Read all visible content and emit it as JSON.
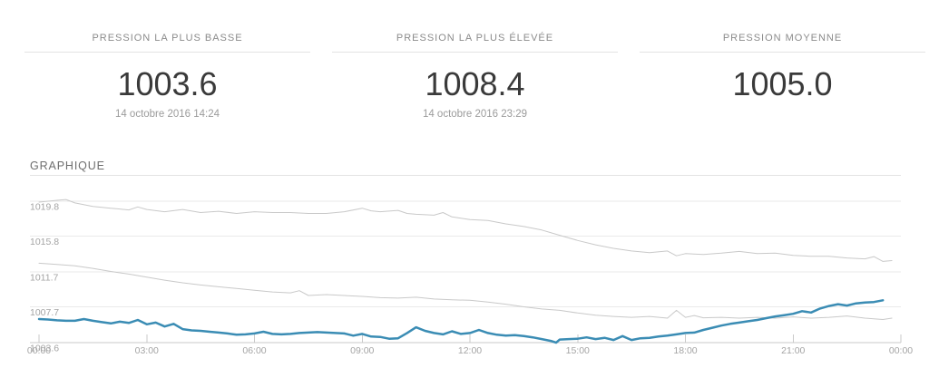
{
  "summary_cards": [
    {
      "label": "PRESSION LA PLUS BASSE",
      "value": "1003.6",
      "date": "14 octobre 2016 14:24"
    },
    {
      "label": "PRESSION LA PLUS ÉLEVÉE",
      "value": "1008.4",
      "date": "14 octobre 2016 23:29"
    },
    {
      "label": "PRESSION MOYENNE",
      "value": "1005.0",
      "date": ""
    }
  ],
  "section": {
    "title": "GRAPHIQUE"
  },
  "colors": {
    "main_line": "#3a8cb4",
    "reference_line": "#c9c9c9",
    "gridline": "#eaeaea",
    "axis": "#c9c9c9",
    "tick_label": "#a4a4a4"
  },
  "chart_data": {
    "type": "line",
    "title": "GRAPHIQUE",
    "grid": true,
    "legend": "none",
    "xlim": [
      0,
      24
    ],
    "ylim": [
      1003.6,
      1021.0
    ],
    "x_ticks": [
      {
        "label": "00:00",
        "hour": 0
      },
      {
        "label": "03:00",
        "hour": 3
      },
      {
        "label": "06:00",
        "hour": 6
      },
      {
        "label": "09:00",
        "hour": 9
      },
      {
        "label": "12:00",
        "hour": 12
      },
      {
        "label": "15:00",
        "hour": 15
      },
      {
        "label": "18:00",
        "hour": 18
      },
      {
        "label": "21:00",
        "hour": 21
      },
      {
        "label": "00:00",
        "hour": 24
      }
    ],
    "y_ticks": [
      {
        "label": "1003.6",
        "value": 1003.6
      },
      {
        "label": "1007.7",
        "value": 1007.7
      },
      {
        "label": "1011.7",
        "value": 1011.7
      },
      {
        "label": "1015.8",
        "value": 1015.8
      },
      {
        "label": "1019.8",
        "value": 1019.8
      }
    ],
    "series": [
      {
        "name": "reference-upper-gray",
        "color": "#c9c9c9",
        "stroke_width": 1,
        "interactable": false,
        "x": [
          0,
          0.5,
          0.75,
          1,
          1.5,
          2,
          2.5,
          2.75,
          3,
          3.5,
          4,
          4.5,
          5,
          5.5,
          6,
          6.5,
          7,
          7.5,
          8,
          8.5,
          9,
          9.25,
          9.5,
          10,
          10.25,
          10.5,
          11,
          11.25,
          11.5,
          12,
          12.5,
          13,
          13.5,
          14,
          14.5,
          15,
          15.5,
          16,
          16.5,
          17,
          17.5,
          17.75,
          18,
          18.5,
          19,
          19.5,
          20,
          20.5,
          21,
          21.5,
          22,
          22.5,
          23,
          23.25,
          23.5,
          23.75
        ],
        "values": [
          1019.7,
          1019.9,
          1020.0,
          1019.6,
          1019.2,
          1019.0,
          1018.8,
          1019.15,
          1018.85,
          1018.6,
          1018.85,
          1018.5,
          1018.65,
          1018.4,
          1018.6,
          1018.5,
          1018.5,
          1018.4,
          1018.4,
          1018.6,
          1019.0,
          1018.7,
          1018.6,
          1018.75,
          1018.4,
          1018.3,
          1018.2,
          1018.5,
          1018.0,
          1017.7,
          1017.6,
          1017.2,
          1016.9,
          1016.5,
          1015.9,
          1015.3,
          1014.8,
          1014.4,
          1014.1,
          1013.9,
          1014.1,
          1013.55,
          1013.8,
          1013.7,
          1013.85,
          1014.05,
          1013.8,
          1013.85,
          1013.6,
          1013.5,
          1013.5,
          1013.3,
          1013.2,
          1013.45,
          1012.9,
          1013.0
        ]
      },
      {
        "name": "reference-lower-gray",
        "color": "#c9c9c9",
        "stroke_width": 1,
        "interactable": false,
        "x": [
          0,
          0.5,
          1,
          1.5,
          2,
          2.5,
          3,
          3.5,
          4,
          4.5,
          5,
          5.5,
          6,
          6.5,
          7,
          7.25,
          7.5,
          8,
          8.5,
          9,
          9.5,
          10,
          10.5,
          11,
          11.5,
          12,
          12.5,
          13,
          13.5,
          14,
          14.5,
          15,
          15.5,
          16,
          16.5,
          17,
          17.5,
          17.75,
          18,
          18.25,
          18.5,
          19,
          19.5,
          20,
          20.5,
          21,
          21.5,
          22,
          22.5,
          23,
          23.5,
          23.75
        ],
        "values": [
          1012.7,
          1012.55,
          1012.4,
          1012.1,
          1011.75,
          1011.45,
          1011.1,
          1010.75,
          1010.45,
          1010.2,
          1010.0,
          1009.8,
          1009.6,
          1009.4,
          1009.3,
          1009.55,
          1009.0,
          1009.1,
          1009.0,
          1008.9,
          1008.75,
          1008.7,
          1008.8,
          1008.6,
          1008.5,
          1008.45,
          1008.25,
          1008.0,
          1007.7,
          1007.45,
          1007.3,
          1007.0,
          1006.75,
          1006.6,
          1006.5,
          1006.6,
          1006.4,
          1007.3,
          1006.5,
          1006.7,
          1006.45,
          1006.5,
          1006.4,
          1006.5,
          1006.4,
          1006.55,
          1006.4,
          1006.5,
          1006.65,
          1006.4,
          1006.25,
          1006.4
        ]
      },
      {
        "name": "pressure-main-blue",
        "color": "#3a8cb4",
        "stroke_width": 2.5,
        "interactable": true,
        "x": [
          0,
          0.25,
          0.5,
          0.75,
          1,
          1.25,
          1.5,
          1.75,
          2,
          2.25,
          2.5,
          2.75,
          3,
          3.25,
          3.5,
          3.75,
          4,
          4.25,
          4.5,
          4.75,
          5,
          5.25,
          5.5,
          5.75,
          6,
          6.25,
          6.5,
          6.75,
          7,
          7.25,
          7.5,
          7.75,
          8,
          8.25,
          8.5,
          8.75,
          9,
          9.25,
          9.5,
          9.75,
          10,
          10.25,
          10.5,
          10.75,
          11,
          11.25,
          11.5,
          11.75,
          12,
          12.25,
          12.5,
          12.75,
          13,
          13.25,
          13.5,
          13.75,
          14,
          14.25,
          14.4,
          14.5,
          14.75,
          15,
          15.25,
          15.5,
          15.75,
          16,
          16.25,
          16.5,
          16.75,
          17,
          17.25,
          17.5,
          17.75,
          18,
          18.25,
          18.5,
          18.75,
          19,
          19.25,
          19.5,
          19.75,
          20,
          20.25,
          20.5,
          20.75,
          21,
          21.25,
          21.5,
          21.75,
          22,
          22.25,
          22.5,
          22.75,
          23,
          23.25,
          23.5
        ],
        "values": [
          1006.3,
          1006.25,
          1006.15,
          1006.1,
          1006.1,
          1006.3,
          1006.1,
          1005.95,
          1005.8,
          1006.0,
          1005.85,
          1006.2,
          1005.7,
          1005.9,
          1005.45,
          1005.75,
          1005.15,
          1005.0,
          1004.95,
          1004.85,
          1004.75,
          1004.65,
          1004.5,
          1004.55,
          1004.65,
          1004.85,
          1004.6,
          1004.55,
          1004.6,
          1004.7,
          1004.75,
          1004.8,
          1004.75,
          1004.7,
          1004.65,
          1004.4,
          1004.6,
          1004.3,
          1004.25,
          1004.05,
          1004.1,
          1004.7,
          1005.35,
          1004.95,
          1004.7,
          1004.55,
          1004.9,
          1004.6,
          1004.7,
          1005.05,
          1004.7,
          1004.5,
          1004.4,
          1004.45,
          1004.35,
          1004.2,
          1004.0,
          1003.8,
          1003.6,
          1003.95,
          1004.0,
          1004.05,
          1004.2,
          1004.0,
          1004.15,
          1003.9,
          1004.35,
          1003.9,
          1004.1,
          1004.15,
          1004.3,
          1004.4,
          1004.55,
          1004.7,
          1004.75,
          1005.05,
          1005.3,
          1005.55,
          1005.75,
          1005.9,
          1006.05,
          1006.2,
          1006.4,
          1006.6,
          1006.75,
          1006.9,
          1007.2,
          1007.05,
          1007.5,
          1007.8,
          1008.0,
          1007.85,
          1008.1,
          1008.2,
          1008.25,
          1008.45
        ]
      }
    ]
  }
}
